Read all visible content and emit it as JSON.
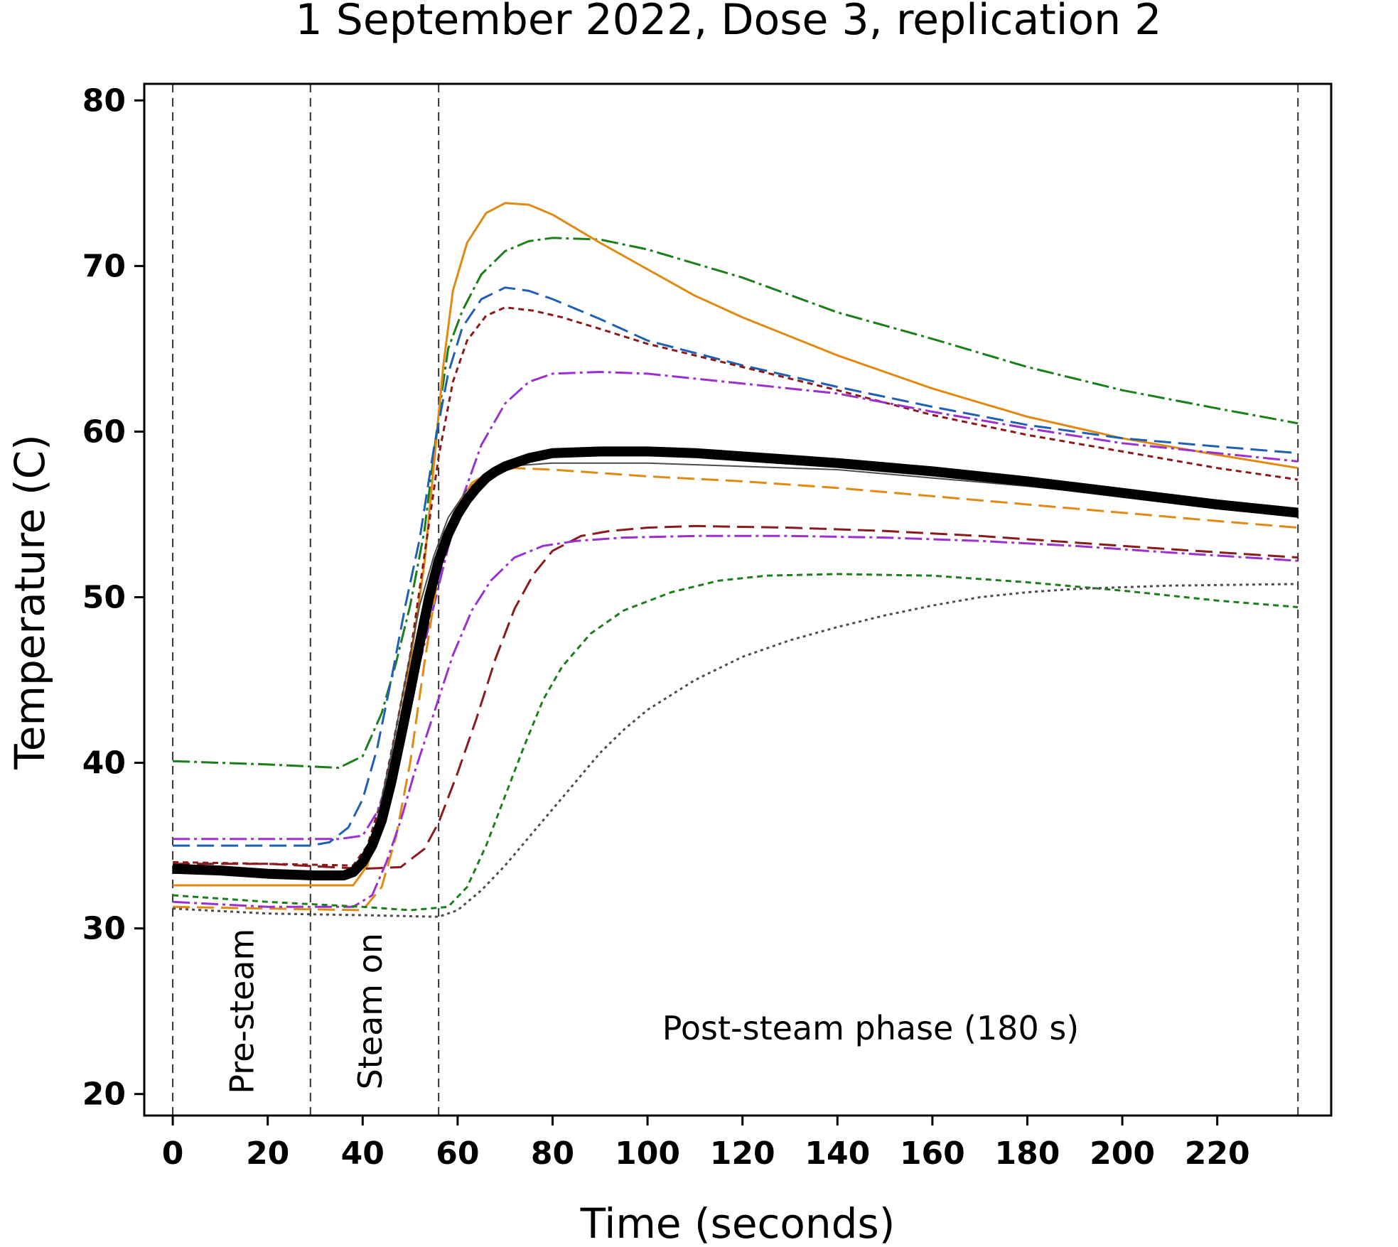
{
  "chart_data": {
    "type": "line",
    "title": "1 September 2022, Dose 3, replication 2",
    "xlabel": "Time (seconds)",
    "ylabel": "Temperature (C)",
    "xlim": [
      -6,
      244
    ],
    "ylim": [
      18.7,
      81
    ],
    "xticks": [
      0,
      20,
      40,
      60,
      80,
      100,
      120,
      140,
      160,
      180,
      200,
      220
    ],
    "yticks": [
      20,
      30,
      40,
      50,
      60,
      70,
      80
    ],
    "grid": false,
    "phase_boundaries": [
      0,
      29,
      56,
      237
    ],
    "annotations": [
      {
        "text": "Pre-steam",
        "x": 17,
        "y": 25,
        "rotation": -90
      },
      {
        "text": "Steam on",
        "x": 44,
        "y": 25,
        "rotation": -90
      },
      {
        "text": "Post-steam phase (180 s)",
        "x": 147,
        "y": 23.3,
        "rotation": 0
      }
    ],
    "series": [
      {
        "color": "#1a7f1a",
        "dash": "24 6 4 6",
        "width": 3,
        "points": [
          [
            0,
            40.1
          ],
          [
            20,
            39.9
          ],
          [
            35,
            39.7
          ],
          [
            40,
            40.4
          ],
          [
            44,
            43
          ],
          [
            47,
            46
          ],
          [
            50,
            49.5
          ],
          [
            53,
            54
          ],
          [
            56,
            61
          ],
          [
            58,
            65
          ],
          [
            61,
            67.3
          ],
          [
            65,
            69.5
          ],
          [
            70,
            70.9
          ],
          [
            75,
            71.5
          ],
          [
            80,
            71.7
          ],
          [
            90,
            71.6
          ],
          [
            100,
            71.0
          ],
          [
            120,
            69.3
          ],
          [
            140,
            67.2
          ],
          [
            160,
            65.6
          ],
          [
            180,
            63.9
          ],
          [
            200,
            62.5
          ],
          [
            220,
            61.4
          ],
          [
            237,
            60.5
          ]
        ]
      },
      {
        "color": "#e08a12",
        "dash": "none",
        "width": 3,
        "points": [
          [
            0,
            32.6
          ],
          [
            20,
            32.6
          ],
          [
            38,
            32.6
          ],
          [
            41,
            33.8
          ],
          [
            44,
            36.8
          ],
          [
            47,
            41
          ],
          [
            50,
            46
          ],
          [
            53,
            52
          ],
          [
            55,
            58
          ],
          [
            57,
            64
          ],
          [
            59,
            68.5
          ],
          [
            62,
            71.4
          ],
          [
            66,
            73.2
          ],
          [
            70,
            73.8
          ],
          [
            75,
            73.7
          ],
          [
            80,
            73.1
          ],
          [
            90,
            71.4
          ],
          [
            100,
            69.8
          ],
          [
            110,
            68.2
          ],
          [
            120,
            66.9
          ],
          [
            140,
            64.6
          ],
          [
            160,
            62.6
          ],
          [
            180,
            60.9
          ],
          [
            200,
            59.6
          ],
          [
            220,
            58.6
          ],
          [
            237,
            57.8
          ]
        ]
      },
      {
        "color": "#1f5fb5",
        "dash": "24 10",
        "width": 3,
        "points": [
          [
            0,
            35
          ],
          [
            15,
            35
          ],
          [
            29,
            35
          ],
          [
            33,
            35.2
          ],
          [
            37,
            36.1
          ],
          [
            40,
            37.8
          ],
          [
            43,
            40.8
          ],
          [
            46,
            45
          ],
          [
            49,
            49.5
          ],
          [
            52,
            53.5
          ],
          [
            55,
            59
          ],
          [
            58,
            63.5
          ],
          [
            61,
            66.3
          ],
          [
            65,
            68
          ],
          [
            70,
            68.7
          ],
          [
            75,
            68.5
          ],
          [
            80,
            68.0
          ],
          [
            90,
            66.8
          ],
          [
            100,
            65.5
          ],
          [
            120,
            64.0
          ],
          [
            140,
            62.7
          ],
          [
            160,
            61.5
          ],
          [
            180,
            60.4
          ],
          [
            200,
            59.6
          ],
          [
            220,
            59.1
          ],
          [
            237,
            58.7
          ]
        ]
      },
      {
        "color": "#8b1a1a",
        "dash": "8 6",
        "width": 3,
        "points": [
          [
            0,
            34
          ],
          [
            20,
            33.9
          ],
          [
            38,
            33.8
          ],
          [
            41,
            35
          ],
          [
            44,
            37.8
          ],
          [
            47,
            42
          ],
          [
            50,
            46.5
          ],
          [
            53,
            52.5
          ],
          [
            56,
            58.5
          ],
          [
            59,
            63
          ],
          [
            62,
            65.5
          ],
          [
            66,
            67
          ],
          [
            70,
            67.5
          ],
          [
            76,
            67.3
          ],
          [
            82,
            66.9
          ],
          [
            90,
            66.2
          ],
          [
            100,
            65.3
          ],
          [
            120,
            63.9
          ],
          [
            140,
            62.5
          ],
          [
            160,
            61
          ],
          [
            180,
            59.8
          ],
          [
            200,
            58.8
          ],
          [
            220,
            57.8
          ],
          [
            237,
            57.1
          ]
        ]
      },
      {
        "color": "#9b30d0",
        "dash": "24 6 4 6",
        "width": 3,
        "points": [
          [
            0,
            35.4
          ],
          [
            20,
            35.4
          ],
          [
            35,
            35.4
          ],
          [
            40,
            35.6
          ],
          [
            43,
            37
          ],
          [
            46,
            39.5
          ],
          [
            49,
            42.5
          ],
          [
            52,
            46
          ],
          [
            55,
            49.5
          ],
          [
            58,
            53
          ],
          [
            61,
            56
          ],
          [
            65,
            59.2
          ],
          [
            70,
            61.7
          ],
          [
            75,
            63
          ],
          [
            80,
            63.5
          ],
          [
            90,
            63.6
          ],
          [
            100,
            63.5
          ],
          [
            120,
            62.9
          ],
          [
            140,
            62.3
          ],
          [
            160,
            61.2
          ],
          [
            180,
            60.2
          ],
          [
            200,
            59.3
          ],
          [
            220,
            58.7
          ],
          [
            237,
            58.2
          ]
        ]
      },
      {
        "color": "#4d4d4d",
        "dash": "none",
        "width": 2,
        "points": [
          [
            0,
            33.7
          ],
          [
            20,
            33.4
          ],
          [
            36,
            33.3
          ],
          [
            40,
            34.2
          ],
          [
            43,
            36.5
          ],
          [
            46,
            40.5
          ],
          [
            49,
            45
          ],
          [
            52,
            49.5
          ],
          [
            55,
            52.5
          ],
          [
            58,
            54.8
          ],
          [
            62,
            56.5
          ],
          [
            66,
            57.4
          ],
          [
            70,
            57.9
          ],
          [
            80,
            58.1
          ],
          [
            90,
            58.1
          ],
          [
            100,
            58.1
          ],
          [
            120,
            57.9
          ],
          [
            140,
            57.7
          ],
          [
            160,
            57.2
          ],
          [
            180,
            56.7
          ],
          [
            200,
            56.1
          ],
          [
            220,
            55.6
          ],
          [
            237,
            55.2
          ]
        ]
      },
      {
        "color": "#e08a12",
        "dash": "24 10",
        "width": 3,
        "points": [
          [
            0,
            31.3
          ],
          [
            20,
            31.2
          ],
          [
            40,
            31.1
          ],
          [
            44,
            32.5
          ],
          [
            47,
            35.5
          ],
          [
            50,
            40
          ],
          [
            53,
            46
          ],
          [
            56,
            51.5
          ],
          [
            59,
            55
          ],
          [
            63,
            56.9
          ],
          [
            67,
            57.6
          ],
          [
            72,
            57.8
          ],
          [
            80,
            57.7
          ],
          [
            90,
            57.5
          ],
          [
            100,
            57.3
          ],
          [
            120,
            57
          ],
          [
            140,
            56.6
          ],
          [
            160,
            56.1
          ],
          [
            180,
            55.6
          ],
          [
            200,
            55.1
          ],
          [
            220,
            54.6
          ],
          [
            237,
            54.2
          ]
        ]
      },
      {
        "color": "#8b1a1a",
        "dash": "24 10",
        "width": 3,
        "points": [
          [
            0,
            33.9
          ],
          [
            20,
            33.9
          ],
          [
            40,
            33.6
          ],
          [
            48,
            33.7
          ],
          [
            53,
            34.8
          ],
          [
            56,
            36.4
          ],
          [
            60,
            39.4
          ],
          [
            64,
            42.7
          ],
          [
            68,
            46.3
          ],
          [
            72,
            49.3
          ],
          [
            76,
            51.4
          ],
          [
            80,
            52.8
          ],
          [
            86,
            53.7
          ],
          [
            92,
            54.0
          ],
          [
            100,
            54.2
          ],
          [
            110,
            54.3
          ],
          [
            130,
            54.2
          ],
          [
            150,
            54.0
          ],
          [
            170,
            53.7
          ],
          [
            190,
            53.3
          ],
          [
            210,
            52.9
          ],
          [
            237,
            52.4
          ]
        ]
      },
      {
        "color": "#9b30d0",
        "dash": "24 6 4 6",
        "width": 3,
        "points": [
          [
            0,
            31.6
          ],
          [
            20,
            31.3
          ],
          [
            38,
            31.3
          ],
          [
            42,
            32
          ],
          [
            45,
            34
          ],
          [
            48,
            36.5
          ],
          [
            51,
            39.5
          ],
          [
            55,
            43
          ],
          [
            59,
            46.5
          ],
          [
            63,
            49.2
          ],
          [
            67,
            51
          ],
          [
            72,
            52.4
          ],
          [
            78,
            53.1
          ],
          [
            85,
            53.4
          ],
          [
            95,
            53.6
          ],
          [
            110,
            53.7
          ],
          [
            130,
            53.7
          ],
          [
            150,
            53.6
          ],
          [
            170,
            53.4
          ],
          [
            190,
            53.1
          ],
          [
            210,
            52.7
          ],
          [
            237,
            52.2
          ]
        ]
      },
      {
        "color": "#1a7f1a",
        "dash": "8 6",
        "width": 3,
        "points": [
          [
            0,
            32
          ],
          [
            20,
            31.6
          ],
          [
            40,
            31.3
          ],
          [
            50,
            31.1
          ],
          [
            58,
            31.3
          ],
          [
            62,
            32.5
          ],
          [
            66,
            35
          ],
          [
            70,
            38
          ],
          [
            74,
            41
          ],
          [
            78,
            43.8
          ],
          [
            82,
            45.8
          ],
          [
            88,
            47.8
          ],
          [
            95,
            49.2
          ],
          [
            105,
            50.3
          ],
          [
            115,
            51
          ],
          [
            125,
            51.3
          ],
          [
            140,
            51.4
          ],
          [
            160,
            51.3
          ],
          [
            180,
            50.9
          ],
          [
            200,
            50.4
          ],
          [
            220,
            49.8
          ],
          [
            237,
            49.4
          ]
        ]
      },
      {
        "color": "#4d4d4d",
        "dash": "4 5",
        "width": 3,
        "points": [
          [
            0,
            31.2
          ],
          [
            20,
            30.9
          ],
          [
            40,
            30.8
          ],
          [
            56,
            30.7
          ],
          [
            60,
            31.1
          ],
          [
            65,
            32.3
          ],
          [
            70,
            33.8
          ],
          [
            75,
            35.5
          ],
          [
            80,
            37.2
          ],
          [
            85,
            38.9
          ],
          [
            90,
            40.6
          ],
          [
            95,
            42
          ],
          [
            100,
            43.2
          ],
          [
            110,
            45
          ],
          [
            120,
            46.4
          ],
          [
            130,
            47.4
          ],
          [
            140,
            48.2
          ],
          [
            150,
            48.9
          ],
          [
            160,
            49.5
          ],
          [
            170,
            50
          ],
          [
            180,
            50.3
          ],
          [
            190,
            50.5
          ],
          [
            200,
            50.6
          ],
          [
            210,
            50.7
          ],
          [
            237,
            50.8
          ]
        ]
      },
      {
        "color": "#000000",
        "dash": "none",
        "width": 14,
        "points": [
          [
            0,
            33.6
          ],
          [
            10,
            33.5
          ],
          [
            20,
            33.3
          ],
          [
            30,
            33.2
          ],
          [
            36,
            33.2
          ],
          [
            38,
            33.4
          ],
          [
            40,
            34
          ],
          [
            42,
            35
          ],
          [
            44,
            36.5
          ],
          [
            46,
            38.8
          ],
          [
            48,
            41.5
          ],
          [
            50,
            44.3
          ],
          [
            52,
            47.2
          ],
          [
            54,
            50.0
          ],
          [
            56,
            52.2
          ],
          [
            58,
            53.8
          ],
          [
            60,
            55.0
          ],
          [
            62,
            55.9
          ],
          [
            64,
            56.6
          ],
          [
            66,
            57.2
          ],
          [
            68,
            57.6
          ],
          [
            70,
            57.9
          ],
          [
            75,
            58.4
          ],
          [
            80,
            58.7
          ],
          [
            90,
            58.8
          ],
          [
            100,
            58.8
          ],
          [
            110,
            58.7
          ],
          [
            120,
            58.5
          ],
          [
            140,
            58.1
          ],
          [
            160,
            57.6
          ],
          [
            180,
            57
          ],
          [
            200,
            56.3
          ],
          [
            220,
            55.6
          ],
          [
            237,
            55.1
          ]
        ]
      }
    ]
  }
}
